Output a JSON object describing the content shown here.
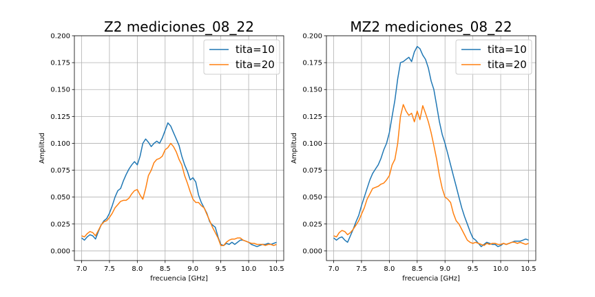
{
  "chart_data": [
    {
      "type": "line",
      "title": "Z2 mediciones_08_22",
      "xlabel": "frecuencia [GHz]",
      "ylabel": "Amplitud",
      "xlim": [
        6.87,
        10.63
      ],
      "ylim": [
        -0.009,
        0.2
      ],
      "xticks": [
        7.0,
        7.5,
        8.0,
        8.5,
        9.0,
        9.5,
        10.0,
        10.5
      ],
      "xtick_labels": [
        "7.0",
        "7.5",
        "8.0",
        "8.5",
        "9.0",
        "9.5",
        "10.0",
        "10.5"
      ],
      "yticks": [
        0.0,
        0.025,
        0.05,
        0.075,
        0.1,
        0.125,
        0.15,
        0.175,
        0.2
      ],
      "ytick_labels": [
        "0.000",
        "0.025",
        "0.050",
        "0.075",
        "0.100",
        "0.125",
        "0.150",
        "0.175",
        "0.200"
      ],
      "grid": true,
      "legend_position": "top-right",
      "series": [
        {
          "name": "tita=10",
          "color": "#1f77b4",
          "x": [
            7.0,
            7.05,
            7.1,
            7.15,
            7.2,
            7.25,
            7.3,
            7.35,
            7.4,
            7.45,
            7.5,
            7.55,
            7.6,
            7.65,
            7.7,
            7.75,
            7.8,
            7.85,
            7.9,
            7.95,
            8.0,
            8.05,
            8.1,
            8.15,
            8.2,
            8.25,
            8.3,
            8.35,
            8.4,
            8.45,
            8.5,
            8.55,
            8.6,
            8.65,
            8.7,
            8.75,
            8.8,
            8.85,
            8.9,
            8.95,
            9.0,
            9.05,
            9.1,
            9.15,
            9.2,
            9.25,
            9.3,
            9.35,
            9.4,
            9.45,
            9.5,
            9.55,
            9.6,
            9.65,
            9.7,
            9.75,
            9.8,
            9.85,
            9.9,
            9.95,
            10.0,
            10.05,
            10.1,
            10.15,
            10.2,
            10.25,
            10.3,
            10.35,
            10.4,
            10.45,
            10.5
          ],
          "y": [
            0.012,
            0.01,
            0.013,
            0.015,
            0.014,
            0.011,
            0.018,
            0.024,
            0.028,
            0.03,
            0.035,
            0.042,
            0.05,
            0.056,
            0.058,
            0.065,
            0.071,
            0.076,
            0.08,
            0.083,
            0.08,
            0.088,
            0.1,
            0.104,
            0.101,
            0.097,
            0.1,
            0.102,
            0.1,
            0.105,
            0.112,
            0.119,
            0.116,
            0.11,
            0.104,
            0.098,
            0.088,
            0.08,
            0.074,
            0.066,
            0.068,
            0.064,
            0.052,
            0.045,
            0.04,
            0.035,
            0.027,
            0.024,
            0.022,
            0.013,
            0.006,
            0.005,
            0.007,
            0.006,
            0.008,
            0.006,
            0.008,
            0.01,
            0.01,
            0.009,
            0.008,
            0.006,
            0.005,
            0.004,
            0.005,
            0.006,
            0.006,
            0.007,
            0.006,
            0.007,
            0.008
          ]
        },
        {
          "name": "tita=20",
          "color": "#ff7f0e",
          "x": [
            7.0,
            7.05,
            7.1,
            7.15,
            7.2,
            7.25,
            7.3,
            7.35,
            7.4,
            7.45,
            7.5,
            7.55,
            7.6,
            7.65,
            7.7,
            7.75,
            7.8,
            7.85,
            7.9,
            7.95,
            8.0,
            8.05,
            8.1,
            8.15,
            8.2,
            8.25,
            8.3,
            8.35,
            8.4,
            8.45,
            8.5,
            8.55,
            8.6,
            8.65,
            8.7,
            8.75,
            8.8,
            8.85,
            8.9,
            8.95,
            9.0,
            9.05,
            9.1,
            9.15,
            9.2,
            9.25,
            9.3,
            9.35,
            9.4,
            9.45,
            9.5,
            9.55,
            9.6,
            9.65,
            9.7,
            9.75,
            9.8,
            9.85,
            9.9,
            9.95,
            10.0,
            10.05,
            10.1,
            10.15,
            10.2,
            10.25,
            10.3,
            10.35,
            10.4,
            10.45,
            10.5
          ],
          "y": [
            0.014,
            0.013,
            0.016,
            0.018,
            0.017,
            0.014,
            0.019,
            0.024,
            0.027,
            0.028,
            0.031,
            0.035,
            0.04,
            0.043,
            0.046,
            0.047,
            0.047,
            0.049,
            0.053,
            0.056,
            0.057,
            0.052,
            0.048,
            0.058,
            0.07,
            0.075,
            0.082,
            0.085,
            0.086,
            0.088,
            0.094,
            0.096,
            0.1,
            0.097,
            0.092,
            0.085,
            0.08,
            0.07,
            0.063,
            0.055,
            0.048,
            0.045,
            0.045,
            0.042,
            0.04,
            0.034,
            0.028,
            0.022,
            0.017,
            0.012,
            0.005,
            0.005,
            0.008,
            0.01,
            0.011,
            0.011,
            0.012,
            0.012,
            0.01,
            0.009,
            0.008,
            0.007,
            0.007,
            0.006,
            0.006,
            0.006,
            0.005,
            0.006,
            0.006,
            0.005,
            0.006
          ]
        }
      ]
    },
    {
      "type": "line",
      "title": "MZ2 mediciones_08_22",
      "xlabel": "frecuencia [GHz]",
      "ylabel": "Amplitud",
      "xlim": [
        6.87,
        10.63
      ],
      "ylim": [
        -0.009,
        0.2
      ],
      "xticks": [
        7.0,
        7.5,
        8.0,
        8.5,
        9.0,
        9.5,
        10.0,
        10.5
      ],
      "xtick_labels": [
        "7.0",
        "7.5",
        "8.0",
        "8.5",
        "9.0",
        "9.5",
        "10.0",
        "10.5"
      ],
      "yticks": [
        0.0,
        0.025,
        0.05,
        0.075,
        0.1,
        0.125,
        0.15,
        0.175,
        0.2
      ],
      "ytick_labels": [
        "0.000",
        "0.025",
        "0.050",
        "0.075",
        "0.100",
        "0.125",
        "0.150",
        "0.175",
        "0.200"
      ],
      "grid": true,
      "legend_position": "top-right",
      "series": [
        {
          "name": "tita=10",
          "color": "#1f77b4",
          "x": [
            7.0,
            7.05,
            7.1,
            7.15,
            7.2,
            7.25,
            7.3,
            7.35,
            7.4,
            7.45,
            7.5,
            7.55,
            7.6,
            7.65,
            7.7,
            7.75,
            7.8,
            7.85,
            7.9,
            7.95,
            8.0,
            8.05,
            8.1,
            8.15,
            8.2,
            8.25,
            8.3,
            8.35,
            8.4,
            8.45,
            8.5,
            8.55,
            8.6,
            8.65,
            8.7,
            8.75,
            8.8,
            8.85,
            8.9,
            8.95,
            9.0,
            9.05,
            9.1,
            9.15,
            9.2,
            9.25,
            9.3,
            9.35,
            9.4,
            9.45,
            9.5,
            9.55,
            9.6,
            9.65,
            9.7,
            9.75,
            9.8,
            9.85,
            9.9,
            9.95,
            10.0,
            10.05,
            10.1,
            10.15,
            10.2,
            10.25,
            10.3,
            10.35,
            10.4,
            10.45,
            10.5
          ],
          "y": [
            0.012,
            0.01,
            0.012,
            0.013,
            0.01,
            0.008,
            0.014,
            0.02,
            0.027,
            0.033,
            0.042,
            0.05,
            0.058,
            0.066,
            0.072,
            0.076,
            0.08,
            0.086,
            0.094,
            0.1,
            0.11,
            0.125,
            0.14,
            0.16,
            0.175,
            0.176,
            0.178,
            0.18,
            0.176,
            0.185,
            0.19,
            0.188,
            0.182,
            0.178,
            0.17,
            0.158,
            0.15,
            0.135,
            0.12,
            0.108,
            0.1,
            0.09,
            0.08,
            0.07,
            0.06,
            0.05,
            0.04,
            0.032,
            0.025,
            0.018,
            0.012,
            0.01,
            0.007,
            0.004,
            0.006,
            0.008,
            0.007,
            0.006,
            0.006,
            0.004,
            0.005,
            0.007,
            0.006,
            0.007,
            0.008,
            0.009,
            0.009,
            0.009,
            0.01,
            0.011,
            0.01
          ]
        },
        {
          "name": "tita=20",
          "color": "#ff7f0e",
          "x": [
            7.0,
            7.05,
            7.1,
            7.15,
            7.2,
            7.25,
            7.3,
            7.35,
            7.4,
            7.45,
            7.5,
            7.55,
            7.6,
            7.65,
            7.7,
            7.75,
            7.8,
            7.85,
            7.9,
            7.95,
            8.0,
            8.05,
            8.1,
            8.15,
            8.2,
            8.25,
            8.3,
            8.35,
            8.4,
            8.45,
            8.5,
            8.55,
            8.6,
            8.65,
            8.7,
            8.75,
            8.8,
            8.85,
            8.9,
            8.95,
            9.0,
            9.05,
            9.1,
            9.15,
            9.2,
            9.25,
            9.3,
            9.35,
            9.4,
            9.45,
            9.5,
            9.55,
            9.6,
            9.65,
            9.7,
            9.75,
            9.8,
            9.85,
            9.9,
            9.95,
            10.0,
            10.05,
            10.1,
            10.15,
            10.2,
            10.25,
            10.3,
            10.35,
            10.4,
            10.45,
            10.5
          ],
          "y": [
            0.014,
            0.013,
            0.017,
            0.019,
            0.018,
            0.015,
            0.017,
            0.02,
            0.024,
            0.028,
            0.034,
            0.04,
            0.048,
            0.053,
            0.058,
            0.059,
            0.06,
            0.062,
            0.063,
            0.066,
            0.07,
            0.08,
            0.085,
            0.1,
            0.125,
            0.136,
            0.13,
            0.126,
            0.128,
            0.12,
            0.13,
            0.122,
            0.135,
            0.128,
            0.12,
            0.11,
            0.098,
            0.085,
            0.07,
            0.058,
            0.05,
            0.048,
            0.045,
            0.035,
            0.028,
            0.025,
            0.02,
            0.015,
            0.01,
            0.008,
            0.007,
            0.008,
            0.007,
            0.006,
            0.005,
            0.007,
            0.006,
            0.007,
            0.007,
            0.006,
            0.006,
            0.007,
            0.006,
            0.007,
            0.008,
            0.008,
            0.007,
            0.008,
            0.007,
            0.006,
            0.007
          ]
        }
      ]
    }
  ]
}
